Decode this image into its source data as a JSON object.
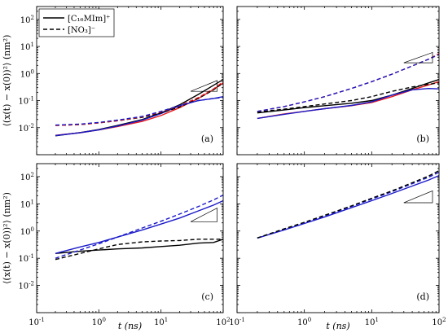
{
  "chart_data": [
    {
      "type": "line",
      "panel_label": "(a)",
      "xscale": "log",
      "yscale": "log",
      "xlim": [
        0.1,
        100
      ],
      "ylim": [
        0.001,
        300
      ],
      "ylabel": "⟨(x(t) − x(0))²⟩ (nm²)",
      "xlabel": "",
      "legend": [
        {
          "label": "[C₁₆MIm]⁺",
          "dash": "solid"
        },
        {
          "label": "[NO₃]⁻",
          "dash": "dashed"
        }
      ],
      "slope_triangle": {
        "x": [
          30,
          80
        ],
        "y": [
          0.22,
          0.55
        ]
      },
      "series": [
        {
          "color": "#000000",
          "dash": "solid",
          "x": [
            0.2,
            0.5,
            1,
            2,
            5,
            10,
            20,
            40,
            70,
            100
          ],
          "y": [
            0.005,
            0.0066,
            0.0085,
            0.012,
            0.02,
            0.035,
            0.07,
            0.17,
            0.37,
            0.6
          ]
        },
        {
          "color": "#e8191c",
          "dash": "solid",
          "x": [
            0.2,
            0.5,
            1,
            2,
            5,
            10,
            20,
            40,
            70,
            100
          ],
          "y": [
            0.0052,
            0.0065,
            0.0082,
            0.011,
            0.017,
            0.028,
            0.055,
            0.12,
            0.26,
            0.45
          ]
        },
        {
          "color": "#1a1ac8",
          "dash": "solid",
          "x": [
            0.2,
            0.5,
            1,
            2,
            5,
            10,
            20,
            40,
            70,
            100
          ],
          "y": [
            0.0051,
            0.0065,
            0.0083,
            0.0115,
            0.019,
            0.033,
            0.065,
            0.1,
            0.12,
            0.14
          ]
        },
        {
          "color": "#000000",
          "dash": "dashed",
          "x": [
            0.2,
            0.5,
            1,
            2,
            5,
            10,
            20,
            40,
            70,
            100
          ],
          "y": [
            0.012,
            0.013,
            0.015,
            0.018,
            0.024,
            0.035,
            0.058,
            0.12,
            0.25,
            0.45
          ]
        },
        {
          "color": "#e8191c",
          "dash": "dashed",
          "x": [
            0.2,
            0.5,
            1,
            2,
            5,
            10,
            20,
            40,
            70,
            100
          ],
          "y": [
            0.012,
            0.013,
            0.015,
            0.018,
            0.025,
            0.038,
            0.065,
            0.13,
            0.27,
            0.5
          ]
        },
        {
          "color": "#1a1ac8",
          "dash": "dashed",
          "x": [
            0.2,
            0.5,
            1,
            2,
            5,
            10,
            20,
            40,
            70,
            100
          ],
          "y": [
            0.0125,
            0.0135,
            0.0155,
            0.019,
            0.026,
            0.04,
            0.066,
            0.1,
            0.12,
            0.13
          ]
        }
      ]
    },
    {
      "type": "line",
      "panel_label": "(b)",
      "xscale": "log",
      "yscale": "log",
      "xlim": [
        0.1,
        100
      ],
      "ylim": [
        0.001,
        300
      ],
      "ylabel": "",
      "xlabel": "",
      "slope_triangle": {
        "x": [
          30,
          80
        ],
        "y": [
          2.5,
          6
        ]
      },
      "series": [
        {
          "color": "#000000",
          "dash": "solid",
          "x": [
            0.2,
            0.5,
            1,
            2,
            5,
            10,
            20,
            40,
            70,
            100
          ],
          "y": [
            0.035,
            0.045,
            0.055,
            0.065,
            0.08,
            0.1,
            0.16,
            0.28,
            0.45,
            0.6
          ]
        },
        {
          "color": "#e8191c",
          "dash": "solid",
          "x": [
            0.2,
            0.5,
            1,
            2,
            5,
            10,
            20,
            40,
            70,
            100
          ],
          "y": [
            0.022,
            0.032,
            0.04,
            0.05,
            0.065,
            0.085,
            0.14,
            0.25,
            0.38,
            0.5
          ]
        },
        {
          "color": "#1a1ac8",
          "dash": "solid",
          "x": [
            0.2,
            0.5,
            1,
            2,
            5,
            10,
            20,
            40,
            70,
            100
          ],
          "y": [
            0.022,
            0.031,
            0.04,
            0.05,
            0.066,
            0.09,
            0.16,
            0.25,
            0.28,
            0.27
          ]
        },
        {
          "color": "#000000",
          "dash": "dashed",
          "x": [
            0.2,
            0.5,
            1,
            2,
            5,
            10,
            20,
            40,
            70,
            100
          ],
          "y": [
            0.038,
            0.048,
            0.06,
            0.075,
            0.1,
            0.14,
            0.22,
            0.32,
            0.4,
            0.45
          ]
        },
        {
          "color": "#e8191c",
          "dash": "dashed",
          "x": [
            0.2,
            0.5,
            1,
            2,
            5,
            10,
            20,
            40,
            70,
            100
          ],
          "y": [
            0.04,
            0.06,
            0.09,
            0.14,
            0.28,
            0.5,
            0.95,
            1.9,
            3.4,
            5.5
          ]
        },
        {
          "color": "#1a1ac8",
          "dash": "dashed",
          "x": [
            0.2,
            0.5,
            1,
            2,
            5,
            10,
            20,
            40,
            70,
            100
          ],
          "y": [
            0.04,
            0.06,
            0.09,
            0.14,
            0.28,
            0.5,
            0.95,
            1.9,
            3.4,
            5.0
          ]
        }
      ]
    },
    {
      "type": "line",
      "panel_label": "(c)",
      "xscale": "log",
      "yscale": "log",
      "xlim": [
        0.1,
        100
      ],
      "ylim": [
        0.001,
        300
      ],
      "ylabel": "⟨(x(t) − x(0))²⟩ (nm²)",
      "xlabel": "t (ns)",
      "slope_triangle": {
        "x": [
          30,
          80
        ],
        "y": [
          2.2,
          7
        ]
      },
      "series": [
        {
          "color": "#000000",
          "dash": "solid",
          "x": [
            0.2,
            0.5,
            1,
            2,
            5,
            10,
            20,
            40,
            70,
            100
          ],
          "y": [
            0.15,
            0.18,
            0.2,
            0.22,
            0.24,
            0.27,
            0.3,
            0.36,
            0.38,
            0.5
          ]
        },
        {
          "color": "#1a1ac8",
          "dash": "solid",
          "x": [
            0.2,
            0.5,
            1,
            2,
            5,
            10,
            20,
            40,
            70,
            100
          ],
          "y": [
            0.15,
            0.26,
            0.38,
            0.6,
            1.1,
            1.8,
            3.0,
            5.5,
            9.0,
            13
          ]
        },
        {
          "color": "#000000",
          "dash": "dashed",
          "x": [
            0.2,
            0.5,
            1,
            2,
            5,
            10,
            20,
            40,
            70,
            100
          ],
          "y": [
            0.09,
            0.15,
            0.22,
            0.32,
            0.4,
            0.43,
            0.45,
            0.5,
            0.5,
            0.5
          ]
        },
        {
          "color": "#1a1ac8",
          "dash": "dashed",
          "x": [
            0.2,
            0.5,
            1,
            2,
            5,
            10,
            20,
            40,
            70,
            100
          ],
          "y": [
            0.1,
            0.2,
            0.34,
            0.6,
            1.3,
            2.3,
            4.2,
            8.0,
            14,
            21
          ]
        }
      ]
    },
    {
      "type": "line",
      "panel_label": "(d)",
      "xscale": "log",
      "yscale": "log",
      "xlim": [
        0.1,
        100
      ],
      "ylim": [
        0.001,
        300
      ],
      "ylabel": "",
      "xlabel": "t (ns)",
      "slope_triangle": {
        "x": [
          30,
          80
        ],
        "y": [
          11,
          30
        ]
      },
      "series": [
        {
          "color": "#1a1ac8",
          "dash": "solid",
          "x": [
            0.2,
            0.5,
            1,
            2,
            5,
            10,
            20,
            40,
            70,
            100
          ],
          "y": [
            0.55,
            1.1,
            1.9,
            3.3,
            7.2,
            13,
            24,
            45,
            75,
            110
          ]
        },
        {
          "color": "#1a1ac8",
          "dash": "dashed",
          "x": [
            0.2,
            0.5,
            1,
            2,
            5,
            10,
            20,
            40,
            70,
            100
          ],
          "y": [
            0.55,
            1.15,
            2.0,
            3.6,
            8.0,
            15,
            28,
            55,
            95,
            145
          ]
        },
        {
          "color": "#000000",
          "dash": "dashed",
          "x": [
            0.2,
            0.5,
            1,
            2,
            5,
            10,
            20,
            40,
            70,
            100
          ],
          "y": [
            0.56,
            1.2,
            2.1,
            3.8,
            8.4,
            16,
            30,
            60,
            105,
            165
          ]
        }
      ]
    }
  ]
}
